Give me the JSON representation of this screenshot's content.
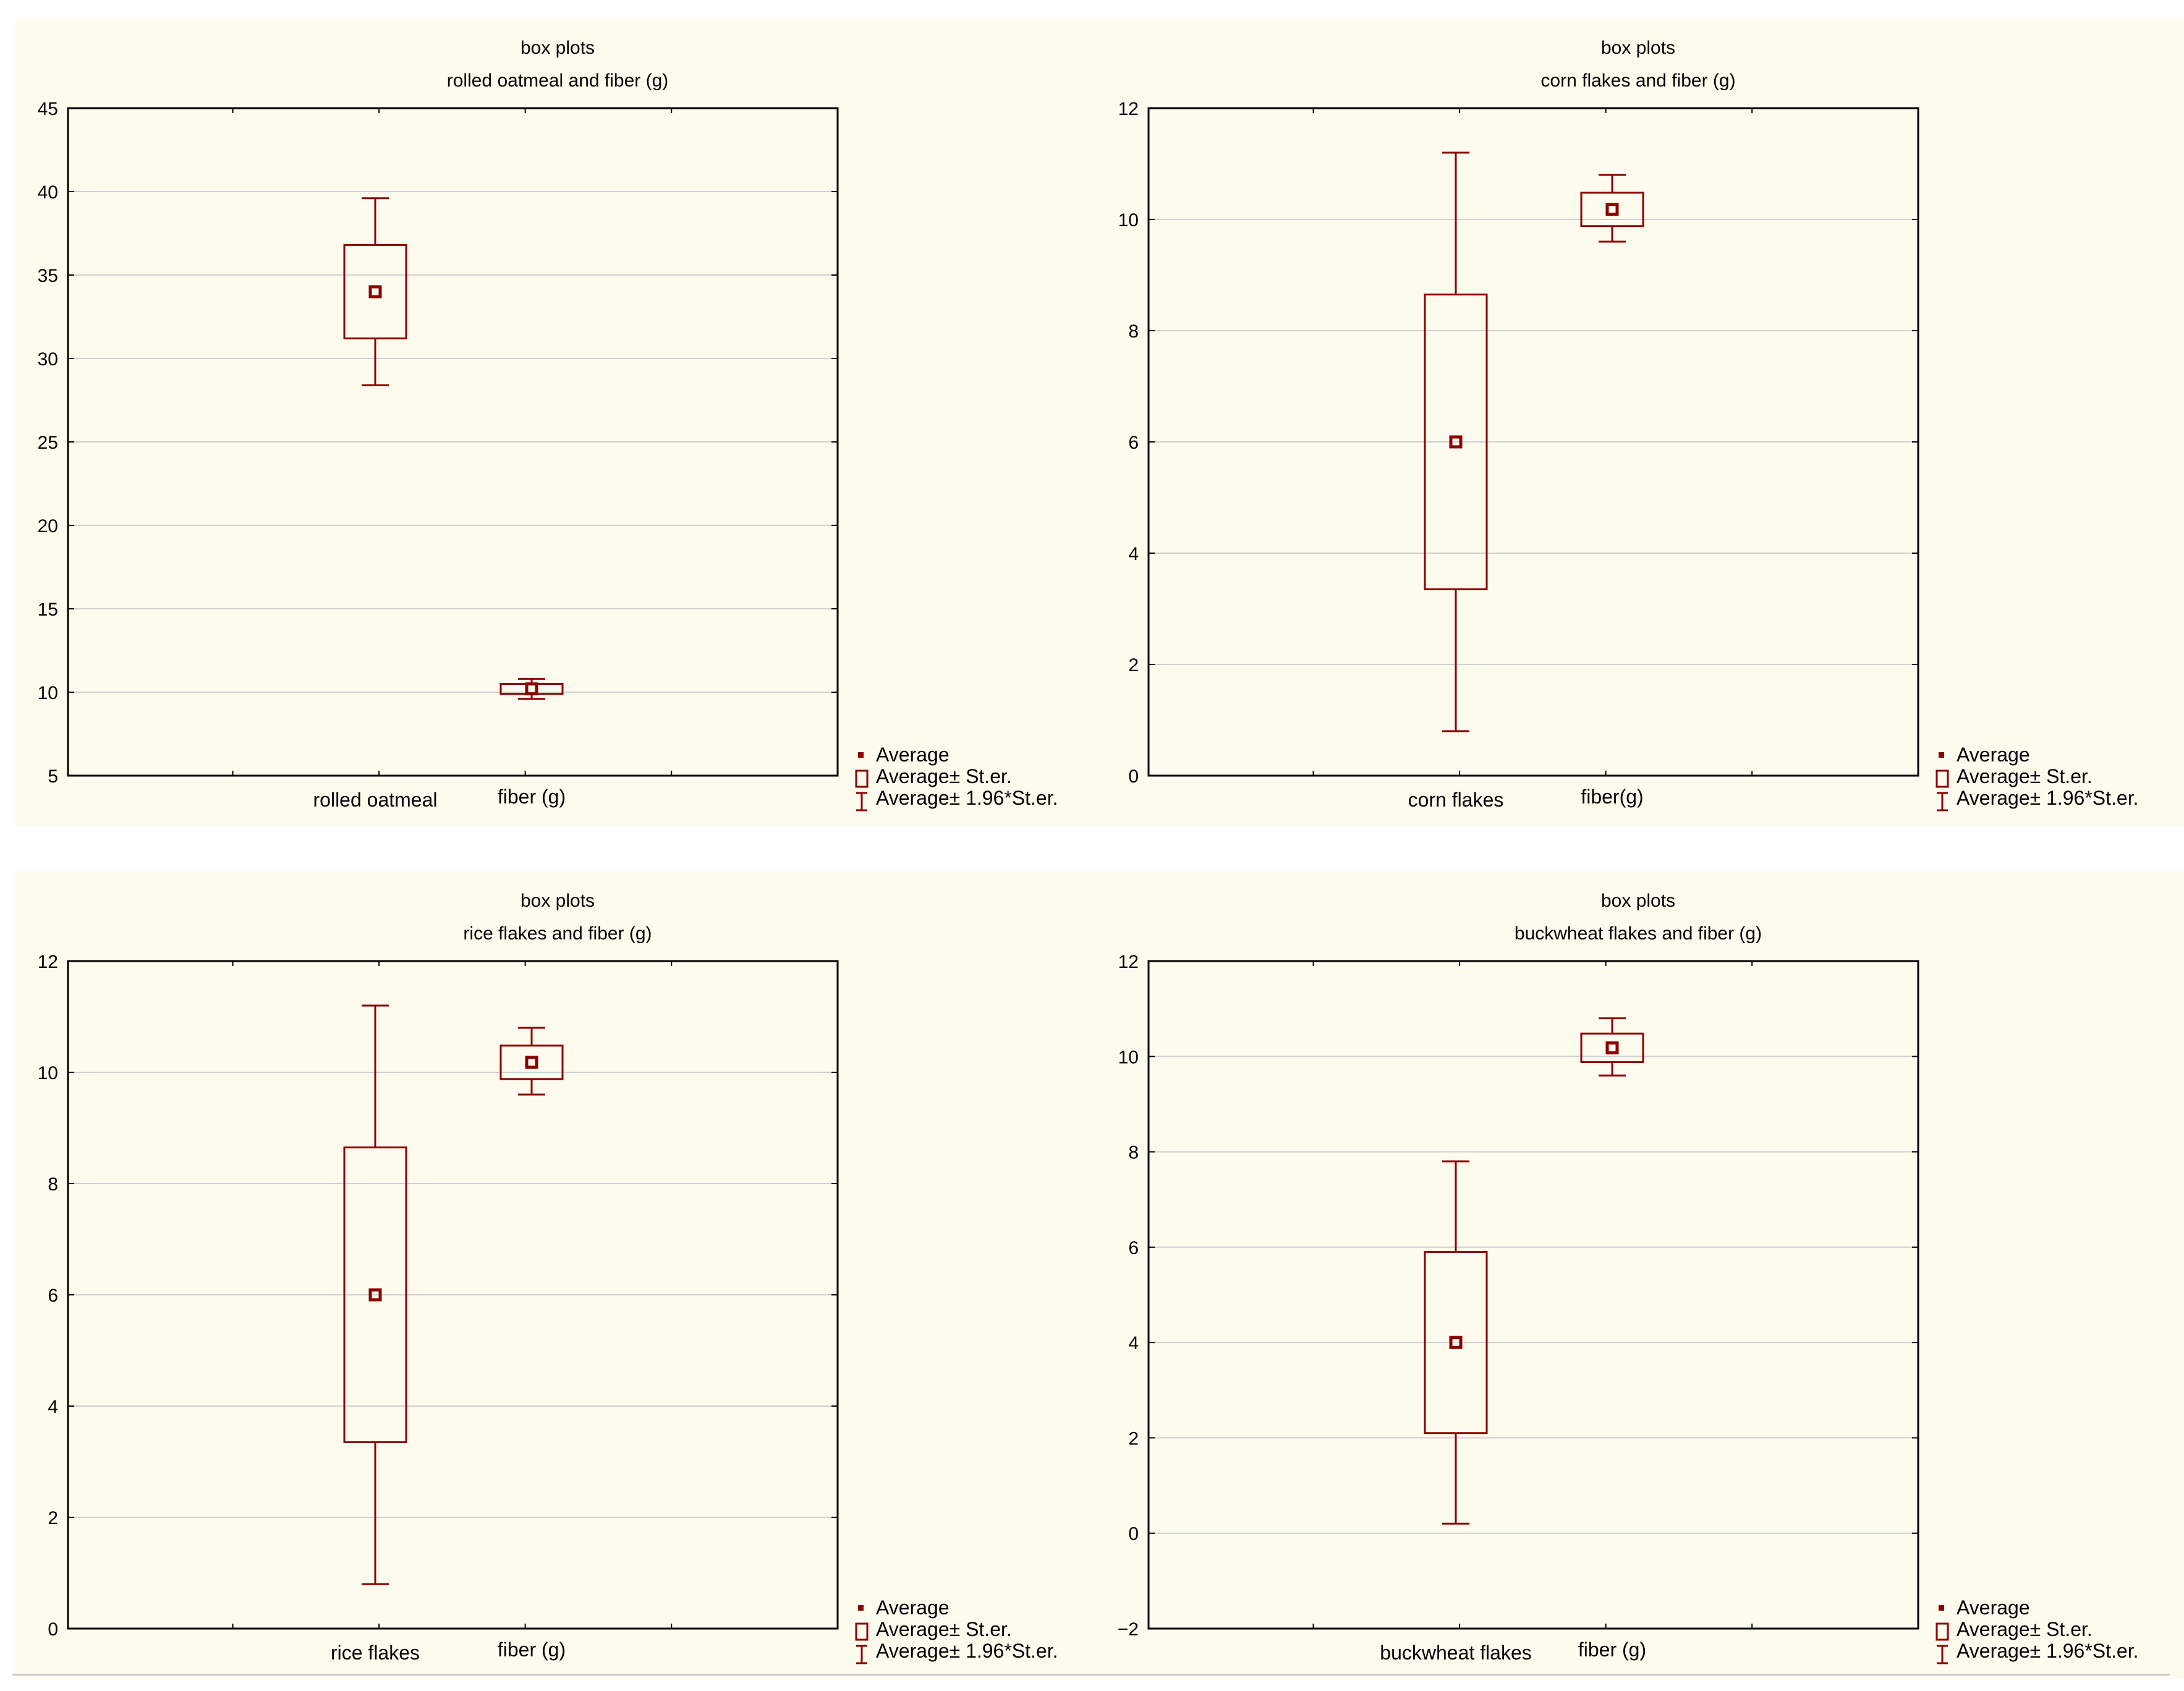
{
  "chart_data": [
    {
      "type": "box",
      "title": "box plots",
      "subtitle": "rolled oatmeal and fiber (g)",
      "categories": [
        "rolled oatmeal",
        "fiber (g)"
      ],
      "series": [
        {
          "average": 34.0,
          "se_low": 31.2,
          "se_high": 36.8,
          "ci_low": 28.4,
          "ci_high": 39.6
        },
        {
          "average": 10.2,
          "se_low": 9.9,
          "se_high": 10.5,
          "ci_low": 9.6,
          "ci_high": 10.8
        }
      ],
      "ylim": [
        5,
        45
      ],
      "yticks": [
        "5",
        "10",
        "15",
        "20",
        "25",
        "30",
        "35",
        "40",
        "45"
      ],
      "legend": [
        "Average",
        "Average± St.er.",
        "Average± 1.96*St.er."
      ],
      "legend_position": "bottom-right",
      "grid": true
    },
    {
      "type": "box",
      "title": "box plots",
      "subtitle": "corn flakes and fiber (g)",
      "categories": [
        "corn flakes",
        "fiber(g)"
      ],
      "series": [
        {
          "average": 6.0,
          "se_low": 3.35,
          "se_high": 8.65,
          "ci_low": 0.8,
          "ci_high": 11.2
        },
        {
          "average": 10.18,
          "se_low": 9.88,
          "se_high": 10.48,
          "ci_low": 9.6,
          "ci_high": 10.8
        }
      ],
      "ylim": [
        0,
        12
      ],
      "yticks": [
        "0",
        "2",
        "4",
        "6",
        "8",
        "10",
        "12"
      ],
      "legend": [
        "Average",
        "Average± St.er.",
        "Average± 1.96*St.er."
      ],
      "legend_position": "bottom-right",
      "grid": true
    },
    {
      "type": "box",
      "title": "box plots",
      "subtitle": "rice flakes  and fiber (g)",
      "categories": [
        "rice flakes",
        "fiber (g)"
      ],
      "series": [
        {
          "average": 6.0,
          "se_low": 3.35,
          "se_high": 8.65,
          "ci_low": 0.8,
          "ci_high": 11.2
        },
        {
          "average": 10.18,
          "se_low": 9.88,
          "se_high": 10.48,
          "ci_low": 9.6,
          "ci_high": 10.8
        }
      ],
      "ylim": [
        0,
        12
      ],
      "yticks": [
        "0",
        "2",
        "4",
        "6",
        "8",
        "10",
        "12"
      ],
      "legend": [
        "Average",
        "Average± St.er.",
        "Average± 1.96*St.er."
      ],
      "legend_position": "bottom-right",
      "grid": true
    },
    {
      "type": "box",
      "title": "box plots",
      "subtitle": "buckwheat flakes and fiber (g)",
      "categories": [
        "buckwheat flakes",
        "fiber (g)"
      ],
      "series": [
        {
          "average": 4.0,
          "se_low": 2.1,
          "se_high": 5.9,
          "ci_low": 0.2,
          "ci_high": 7.8
        },
        {
          "average": 10.18,
          "se_low": 9.88,
          "se_high": 10.48,
          "ci_low": 9.6,
          "ci_high": 10.8
        }
      ],
      "ylim": [
        -2,
        12
      ],
      "yticks": [
        "−2",
        "0",
        "2",
        "4",
        "6",
        "8",
        "10",
        "12"
      ],
      "legend": [
        "Average",
        "Average± St.er.",
        "Average± 1.96*St.er."
      ],
      "legend_position": "bottom-right",
      "grid": true
    }
  ],
  "colors": {
    "series": "#8b0000",
    "background": "#fdfaee",
    "grid": "#d0d0d0",
    "axis": "#000000",
    "text": "#000000"
  }
}
